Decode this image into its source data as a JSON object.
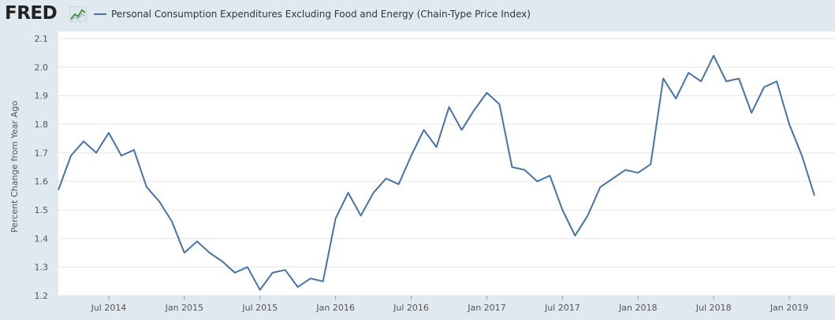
{
  "header": {
    "logo_text": "FRED",
    "legend_label": "Personal Consumption Expenditures Excluding Food and Energy (Chain-Type Price Index)"
  },
  "colors": {
    "series": "#4572a7",
    "background": "#e1e9f0",
    "plot_background": "#ffffff",
    "grid": "#e6e6e6"
  },
  "chart_data": {
    "type": "line",
    "ylabel": "Percent Change from Year Ago",
    "xlabel": "",
    "ylim": [
      1.2,
      2.1
    ],
    "xlim": [
      "2014-03",
      "2019-04"
    ],
    "y_ticks": [
      "1.2",
      "1.3",
      "1.4",
      "1.5",
      "1.6",
      "1.7",
      "1.8",
      "1.9",
      "2.0",
      "2.1"
    ],
    "x_ticks": [
      {
        "label": "Jul 2014",
        "date": "2014-07"
      },
      {
        "label": "Jan 2015",
        "date": "2015-01"
      },
      {
        "label": "Jul 2015",
        "date": "2015-07"
      },
      {
        "label": "Jan 2016",
        "date": "2016-01"
      },
      {
        "label": "Jul 2016",
        "date": "2016-07"
      },
      {
        "label": "Jan 2017",
        "date": "2017-01"
      },
      {
        "label": "Jul 2017",
        "date": "2017-07"
      },
      {
        "label": "Jan 2018",
        "date": "2018-01"
      },
      {
        "label": "Jul 2018",
        "date": "2018-07"
      },
      {
        "label": "Jan 2019",
        "date": "2019-01"
      }
    ],
    "grid": true,
    "series": [
      {
        "name": "Personal Consumption Expenditures Excluding Food and Energy (Chain-Type Price Index)",
        "x": [
          "2014-03",
          "2014-04",
          "2014-05",
          "2014-06",
          "2014-07",
          "2014-08",
          "2014-09",
          "2014-10",
          "2014-11",
          "2014-12",
          "2015-01",
          "2015-02",
          "2015-03",
          "2015-04",
          "2015-05",
          "2015-06",
          "2015-07",
          "2015-08",
          "2015-09",
          "2015-10",
          "2015-11",
          "2015-12",
          "2016-01",
          "2016-02",
          "2016-03",
          "2016-04",
          "2016-05",
          "2016-06",
          "2016-07",
          "2016-08",
          "2016-09",
          "2016-10",
          "2016-11",
          "2016-12",
          "2017-01",
          "2017-02",
          "2017-03",
          "2017-04",
          "2017-05",
          "2017-06",
          "2017-07",
          "2017-08",
          "2017-09",
          "2017-10",
          "2017-11",
          "2017-12",
          "2018-01",
          "2018-02",
          "2018-03",
          "2018-04",
          "2018-05",
          "2018-06",
          "2018-07",
          "2018-08",
          "2018-09",
          "2018-10",
          "2018-11",
          "2018-12",
          "2019-01",
          "2019-02",
          "2019-03"
        ],
        "values": [
          1.57,
          1.69,
          1.74,
          1.7,
          1.77,
          1.69,
          1.71,
          1.58,
          1.53,
          1.46,
          1.35,
          1.39,
          1.35,
          1.32,
          1.28,
          1.3,
          1.22,
          1.28,
          1.29,
          1.23,
          1.26,
          1.25,
          1.47,
          1.56,
          1.48,
          1.56,
          1.61,
          1.59,
          1.69,
          1.78,
          1.72,
          1.86,
          1.78,
          1.85,
          1.91,
          1.87,
          1.65,
          1.64,
          1.6,
          1.62,
          1.5,
          1.41,
          1.48,
          1.58,
          1.61,
          1.64,
          1.63,
          1.66,
          1.96,
          1.89,
          1.98,
          1.95,
          2.04,
          1.95,
          1.96,
          1.84,
          1.93,
          1.95,
          1.8,
          1.69,
          1.55
        ]
      }
    ]
  }
}
